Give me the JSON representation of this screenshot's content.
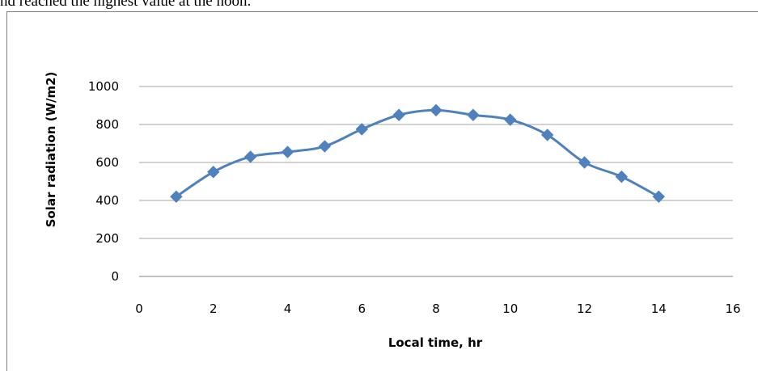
{
  "page": {
    "top_text": "nd reached the highest value at the noon."
  },
  "chart_data": {
    "type": "line",
    "xlabel": "Local time, hr",
    "ylabel": "Solar radiation (W/m2)",
    "xlim": [
      0,
      16
    ],
    "ylim": [
      0,
      1000
    ],
    "x_ticks": [
      0,
      2,
      4,
      6,
      8,
      10,
      12,
      14,
      16
    ],
    "y_ticks": [
      0,
      200,
      400,
      600,
      800,
      1000
    ],
    "grid": "horizontal",
    "legend": "none",
    "series": [
      {
        "x": [
          1,
          2,
          3,
          4,
          5,
          6,
          7,
          8,
          9,
          10,
          11,
          12,
          13,
          14
        ],
        "y": [
          420,
          550,
          630,
          655,
          685,
          775,
          850,
          875,
          850,
          825,
          745,
          600,
          525,
          420
        ],
        "color": "#4f81bd",
        "marker": "diamond",
        "smooth": true
      }
    ]
  }
}
